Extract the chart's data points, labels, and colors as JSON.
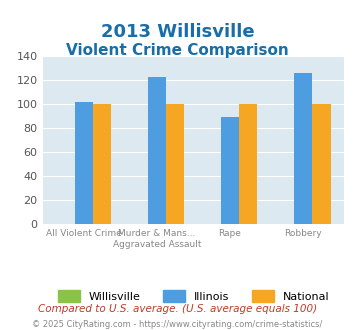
{
  "title_line1": "2013 Willisville",
  "title_line2": "Violent Crime Comparison",
  "categories": [
    "All Violent Crime",
    "Murder & Mans...\nAggravated Assault",
    "Rape",
    "Robbery"
  ],
  "willisville": [
    0,
    0,
    0,
    0
  ],
  "illinois": [
    102,
    123,
    89,
    126
  ],
  "national": [
    100,
    100,
    100,
    100
  ],
  "bar_colors": {
    "willisville": "#8bc34a",
    "illinois": "#4d9de0",
    "national": "#f5a623"
  },
  "ylim": [
    0,
    140
  ],
  "yticks": [
    0,
    20,
    40,
    60,
    80,
    100,
    120,
    140
  ],
  "xlabel_fontsize": 8,
  "title_color": "#1a6ea8",
  "background_color": "#dce9f0",
  "plot_bg": "#dce9f0",
  "fig_bg": "#ffffff",
  "footnote1": "Compared to U.S. average. (U.S. average equals 100)",
  "footnote2": "© 2025 CityRating.com - https://www.cityrating.com/crime-statistics/",
  "footnote1_color": "#c0392b",
  "footnote2_color": "#888888",
  "legend_labels": [
    "Willisville",
    "Illinois",
    "National"
  ],
  "bar_width": 0.25
}
